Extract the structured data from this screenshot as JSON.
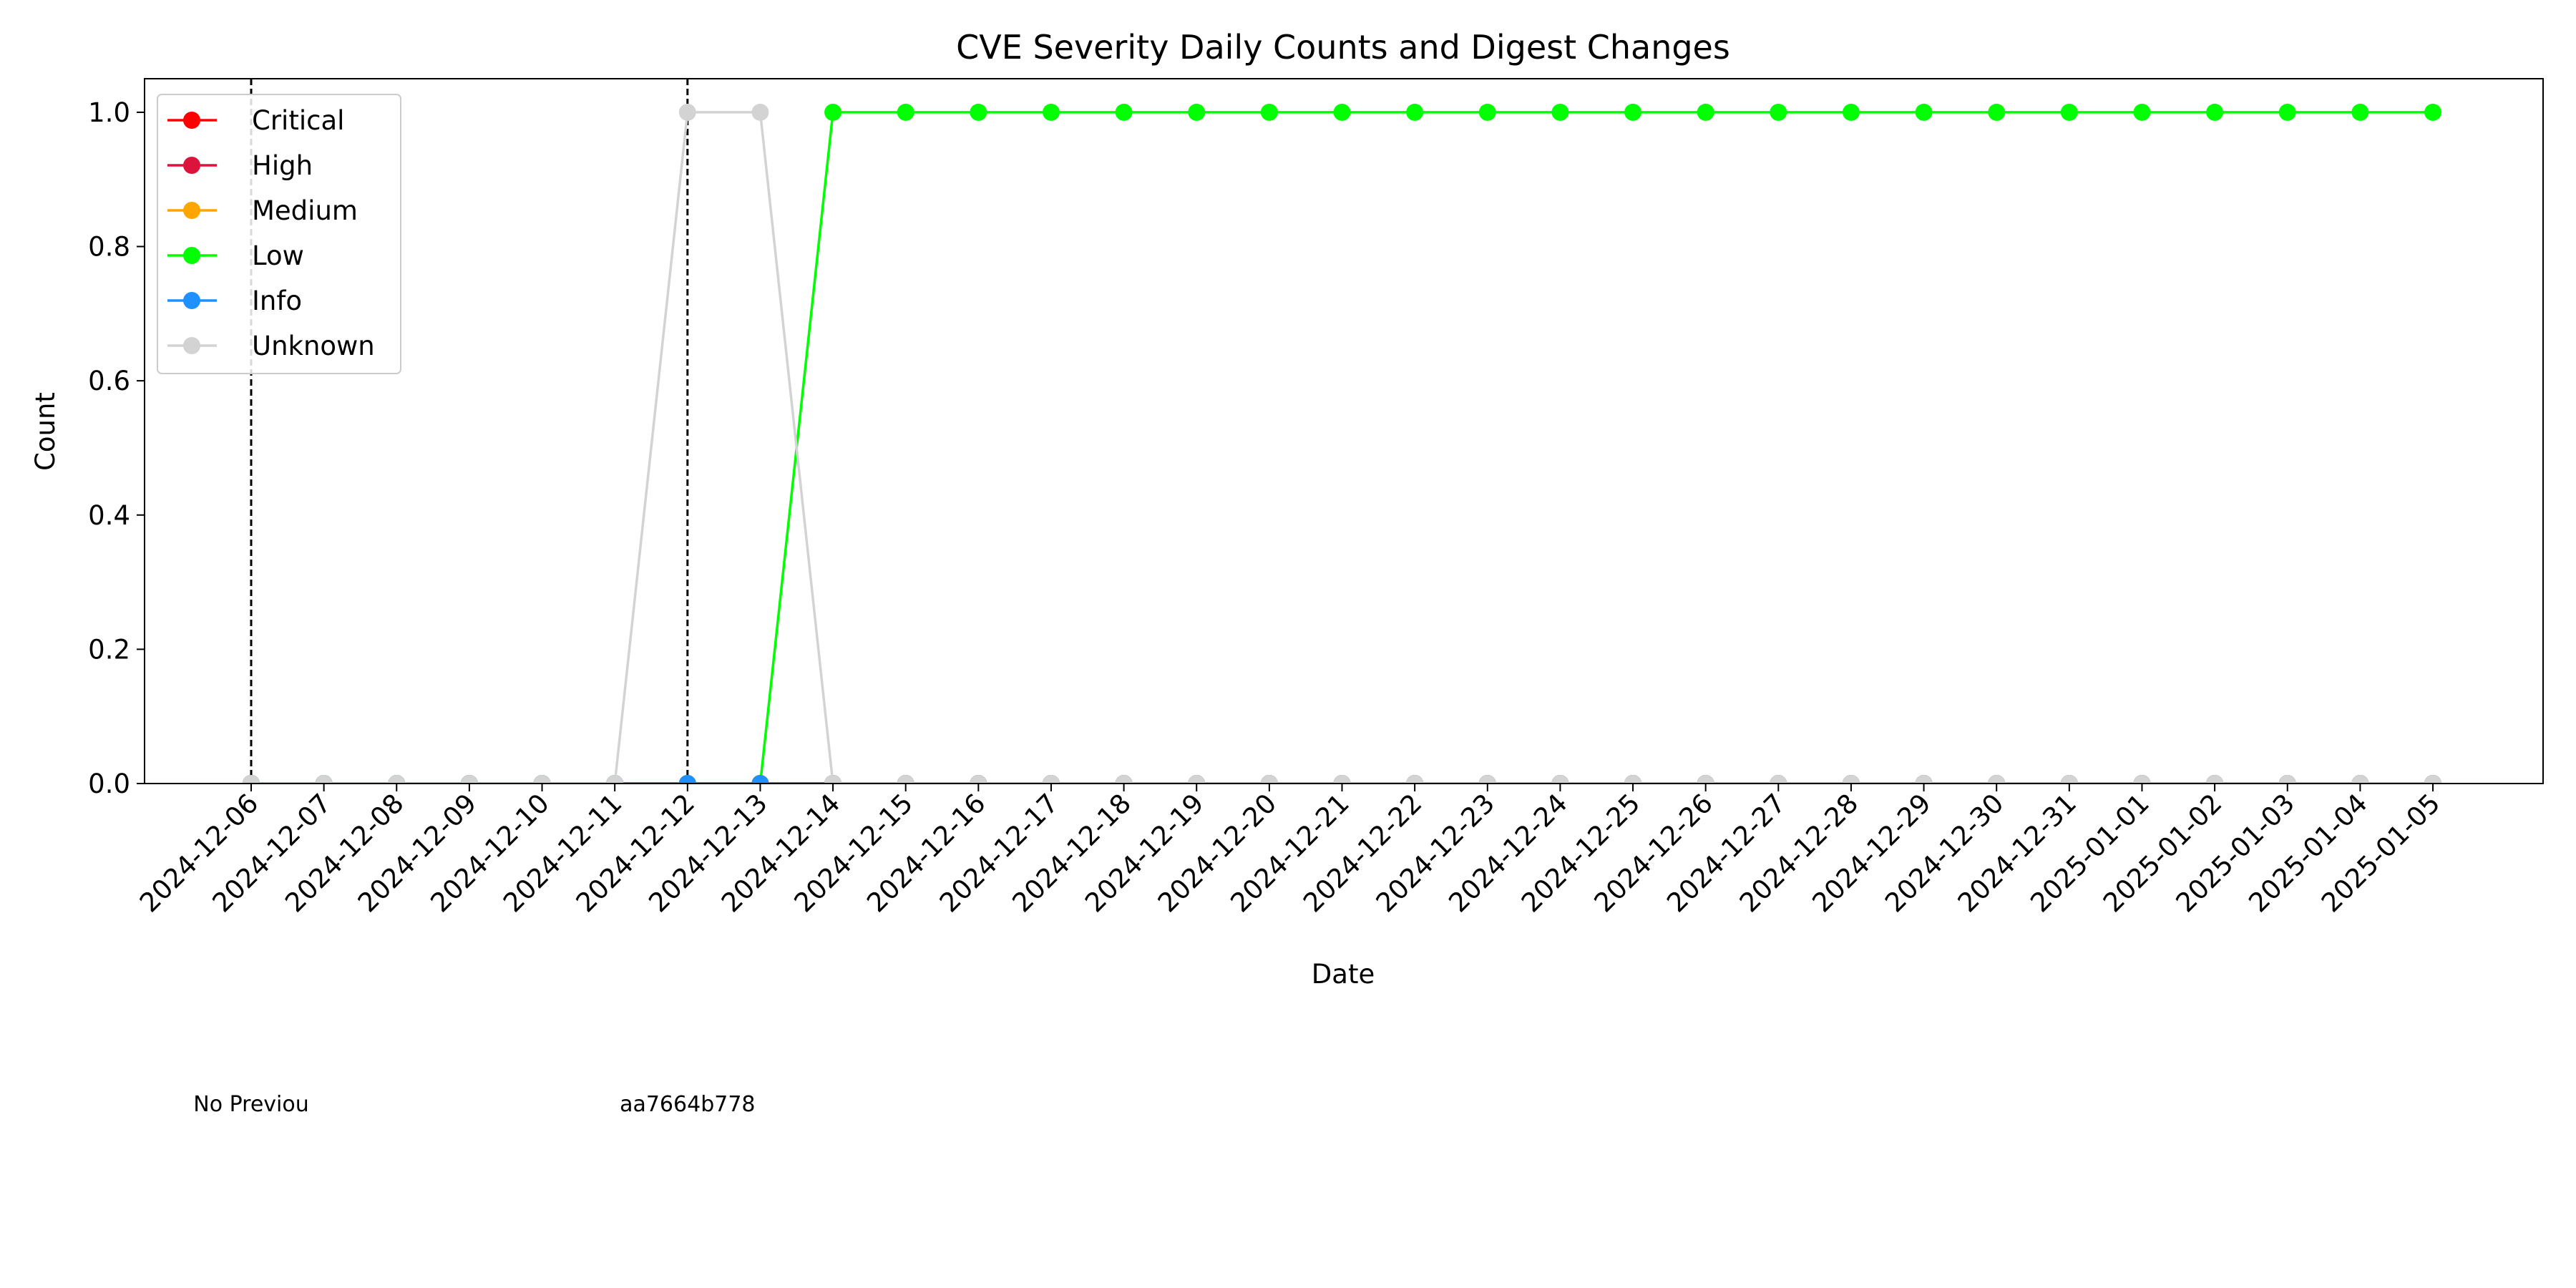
{
  "chart_data": {
    "type": "line",
    "title": "CVE Severity Daily Counts and Digest Changes",
    "x_label": "Date",
    "y_label": "Count",
    "categories": [
      "2024-12-06",
      "2024-12-07",
      "2024-12-08",
      "2024-12-09",
      "2024-12-10",
      "2024-12-11",
      "2024-12-12",
      "2024-12-13",
      "2024-12-14",
      "2024-12-15",
      "2024-12-16",
      "2024-12-17",
      "2024-12-18",
      "2024-12-19",
      "2024-12-20",
      "2024-12-21",
      "2024-12-22",
      "2024-12-23",
      "2024-12-24",
      "2024-12-25",
      "2024-12-26",
      "2024-12-27",
      "2024-12-28",
      "2024-12-29",
      "2024-12-30",
      "2024-12-31",
      "2025-01-01",
      "2025-01-02",
      "2025-01-03",
      "2025-01-04",
      "2025-01-05"
    ],
    "series": [
      {
        "name": "Critical",
        "color": "#ff0000",
        "values": [
          0,
          0,
          0,
          0,
          0,
          0,
          0,
          0,
          0,
          0,
          0,
          0,
          0,
          0,
          0,
          0,
          0,
          0,
          0,
          0,
          0,
          0,
          0,
          0,
          0,
          0,
          0,
          0,
          0,
          0,
          0
        ]
      },
      {
        "name": "High",
        "color": "#dc143c",
        "values": [
          0,
          0,
          0,
          0,
          0,
          0,
          0,
          0,
          0,
          0,
          0,
          0,
          0,
          0,
          0,
          0,
          0,
          0,
          0,
          0,
          0,
          0,
          0,
          0,
          0,
          0,
          0,
          0,
          0,
          0,
          0
        ]
      },
      {
        "name": "Medium",
        "color": "#ffa500",
        "values": [
          0,
          0,
          0,
          0,
          0,
          0,
          0,
          0,
          0,
          0,
          0,
          0,
          0,
          0,
          0,
          0,
          0,
          0,
          0,
          0,
          0,
          0,
          0,
          0,
          0,
          0,
          0,
          0,
          0,
          0,
          0
        ]
      },
      {
        "name": "Low",
        "color": "#00ff00",
        "values": [
          0,
          0,
          0,
          0,
          0,
          0,
          0,
          0,
          1,
          1,
          1,
          1,
          1,
          1,
          1,
          1,
          1,
          1,
          1,
          1,
          1,
          1,
          1,
          1,
          1,
          1,
          1,
          1,
          1,
          1,
          1
        ]
      },
      {
        "name": "Info",
        "color": "#1e90ff",
        "values": [
          0,
          0,
          0,
          0,
          0,
          0,
          0,
          0,
          0,
          0,
          0,
          0,
          0,
          0,
          0,
          0,
          0,
          0,
          0,
          0,
          0,
          0,
          0,
          0,
          0,
          0,
          0,
          0,
          0,
          0,
          0
        ]
      },
      {
        "name": "Unknown",
        "color": "#d3d3d3",
        "values": [
          0,
          0,
          0,
          0,
          0,
          0,
          1,
          1,
          0,
          0,
          0,
          0,
          0,
          0,
          0,
          0,
          0,
          0,
          0,
          0,
          0,
          0,
          0,
          0,
          0,
          0,
          0,
          0,
          0,
          0,
          0
        ]
      }
    ],
    "ylim": [
      0,
      1.05
    ],
    "yticks": [
      {
        "value": 0,
        "label": "0.0"
      },
      {
        "value": 0.2,
        "label": "0.2"
      },
      {
        "value": 0.4,
        "label": "0.4"
      },
      {
        "value": 0.6,
        "label": "0.6"
      },
      {
        "value": 0.8,
        "label": "0.8"
      },
      {
        "value": 1,
        "label": "1.0"
      }
    ],
    "legend": "upper left",
    "digest_changes": [
      {
        "date": "2024-12-06",
        "label": "No Previou"
      },
      {
        "date": "2024-12-12",
        "label": "aa7664b778"
      }
    ]
  }
}
